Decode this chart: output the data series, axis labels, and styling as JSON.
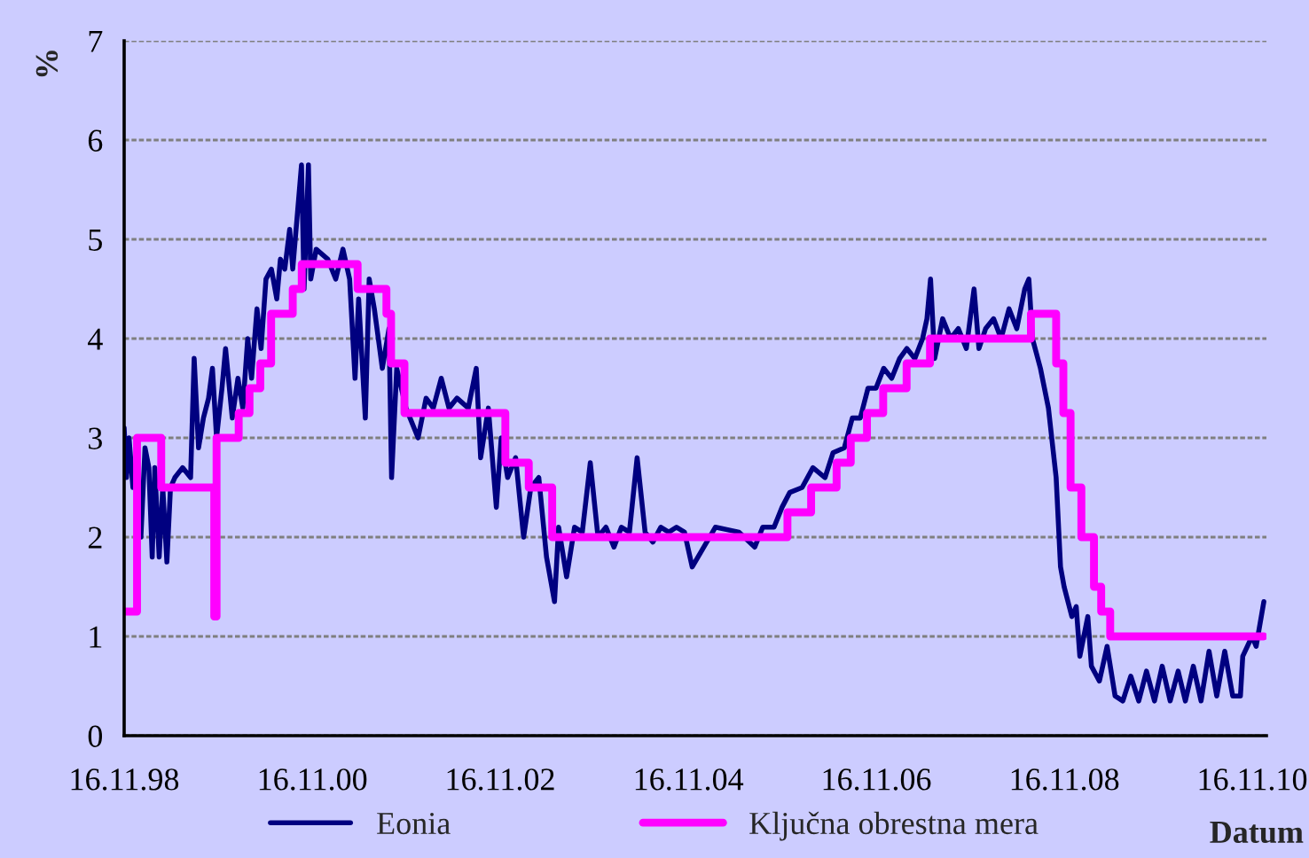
{
  "chart_data": {
    "type": "line",
    "ylabel": "%",
    "xlabel": "Datum",
    "xlim": [
      "1998-11-16",
      "2011-01-10"
    ],
    "xticks": [
      {
        "value": "1998-11-16",
        "label": "16.11.98"
      },
      {
        "value": "2000-11-16",
        "label": "16.11.00"
      },
      {
        "value": "2002-11-16",
        "label": "16.11.02"
      },
      {
        "value": "2004-11-16",
        "label": "16.11.04"
      },
      {
        "value": "2006-11-16",
        "label": "16.11.06"
      },
      {
        "value": "2008-11-16",
        "label": "16.11.08"
      },
      {
        "value": "2010-11-16",
        "label": "16.11.10"
      }
    ],
    "ylim": [
      0,
      7
    ],
    "yticks": [
      0,
      1,
      2,
      3,
      4,
      5,
      6,
      7
    ],
    "grid": "y",
    "legend": "bottom",
    "line_style": "solid",
    "series": [
      {
        "name": "Eonia",
        "color": "#000080",
        "x": [
          "1998-11-16",
          "1998-11-25",
          "1998-12-05",
          "1998-12-20",
          "1999-01-05",
          "1999-01-20",
          "1999-02-05",
          "1999-02-20",
          "1999-03-05",
          "1999-03-15",
          "1999-04-01",
          "1999-04-15",
          "1999-05-01",
          "1999-05-15",
          "1999-06-01",
          "1999-07-01",
          "1999-08-01",
          "1999-08-15",
          "1999-09-01",
          "1999-09-20",
          "1999-10-10",
          "1999-10-25",
          "1999-11-10",
          "1999-12-01",
          "1999-12-15",
          "2000-01-10",
          "2000-02-01",
          "2000-02-20",
          "2000-03-10",
          "2000-03-25",
          "2000-04-15",
          "2000-05-01",
          "2000-05-20",
          "2000-06-10",
          "2000-07-01",
          "2000-07-15",
          "2000-08-01",
          "2000-08-20",
          "2000-09-01",
          "2000-10-05",
          "2000-10-15",
          "2000-11-01",
          "2000-11-10",
          "2000-12-01",
          "2001-01-15",
          "2001-02-15",
          "2001-03-15",
          "2001-04-10",
          "2001-05-01",
          "2001-05-15",
          "2001-06-10",
          "2001-06-25",
          "2001-07-15",
          "2001-08-15",
          "2001-09-10",
          "2001-09-20",
          "2001-10-10",
          "2001-11-15",
          "2002-01-01",
          "2002-02-01",
          "2002-03-01",
          "2002-04-01",
          "2002-05-01",
          "2002-06-01",
          "2002-07-15",
          "2002-08-15",
          "2002-09-01",
          "2002-10-01",
          "2002-11-01",
          "2002-11-20",
          "2002-12-15",
          "2003-01-15",
          "2003-02-15",
          "2003-03-15",
          "2003-04-15",
          "2003-05-15",
          "2003-06-15",
          "2003-07-01",
          "2003-08-01",
          "2003-09-01",
          "2003-10-01",
          "2003-11-01",
          "2003-12-01",
          "2004-01-01",
          "2004-02-01",
          "2004-03-01",
          "2004-04-01",
          "2004-05-01",
          "2004-06-01",
          "2004-07-01",
          "2004-08-01",
          "2004-09-01",
          "2004-10-01",
          "2004-11-01",
          "2004-12-01",
          "2005-03-01",
          "2005-06-01",
          "2005-08-01",
          "2005-09-01",
          "2005-10-15",
          "2005-11-15",
          "2005-12-15",
          "2006-02-01",
          "2006-03-15",
          "2006-05-01",
          "2006-06-01",
          "2006-07-15",
          "2006-08-15",
          "2006-09-15",
          "2006-10-15",
          "2006-11-15",
          "2006-12-15",
          "2007-01-15",
          "2007-02-15",
          "2007-03-15",
          "2007-04-15",
          "2007-05-15",
          "2007-06-01",
          "2007-06-15",
          "2007-07-01",
          "2007-08-01",
          "2007-09-01",
          "2007-10-01",
          "2007-11-01",
          "2007-12-01",
          "2007-12-20",
          "2008-01-15",
          "2008-02-15",
          "2008-03-15",
          "2008-04-15",
          "2008-05-15",
          "2008-06-15",
          "2008-07-01",
          "2008-07-15",
          "2008-08-15",
          "2008-09-15",
          "2008-10-15",
          "2008-11-01",
          "2008-11-15",
          "2008-12-15",
          "2009-01-01",
          "2009-01-15",
          "2009-02-15",
          "2009-03-01",
          "2009-04-01",
          "2009-05-01",
          "2009-06-01",
          "2009-07-01",
          "2009-08-01",
          "2009-09-01",
          "2009-10-01",
          "2009-11-01",
          "2009-12-01",
          "2010-01-01",
          "2010-02-01",
          "2010-03-01",
          "2010-04-01",
          "2010-05-01",
          "2010-06-01",
          "2010-07-01",
          "2010-08-01",
          "2010-09-01",
          "2010-10-01",
          "2010-10-10",
          "2010-11-15",
          "2010-12-01",
          "2010-12-31"
        ],
        "values": [
          3.1,
          2.6,
          3.0,
          2.5,
          2.8,
          2.0,
          2.9,
          2.7,
          1.8,
          2.7,
          1.8,
          2.5,
          1.75,
          2.5,
          2.6,
          2.7,
          2.6,
          3.8,
          2.9,
          3.2,
          3.4,
          3.7,
          3.0,
          3.5,
          3.9,
          3.2,
          3.6,
          3.3,
          4.0,
          3.6,
          4.3,
          3.9,
          4.6,
          4.7,
          4.4,
          4.8,
          4.7,
          5.1,
          4.7,
          5.75,
          4.5,
          5.75,
          4.6,
          4.9,
          4.8,
          4.6,
          4.9,
          4.6,
          3.6,
          4.4,
          3.2,
          4.6,
          4.3,
          3.7,
          4.1,
          2.6,
          3.7,
          3.3,
          3.0,
          3.4,
          3.3,
          3.6,
          3.3,
          3.4,
          3.3,
          3.7,
          2.8,
          3.3,
          2.3,
          3.0,
          2.6,
          2.8,
          2.0,
          2.5,
          2.6,
          1.8,
          1.35,
          2.1,
          1.6,
          2.1,
          2.05,
          2.75,
          2.0,
          2.1,
          1.9,
          2.1,
          2.05,
          2.8,
          2.05,
          1.95,
          2.1,
          2.05,
          2.1,
          2.05,
          1.7,
          2.1,
          2.05,
          1.9,
          2.1,
          2.1,
          2.3,
          2.45,
          2.5,
          2.7,
          2.6,
          2.85,
          2.9,
          3.2,
          3.2,
          3.5,
          3.5,
          3.7,
          3.6,
          3.8,
          3.9,
          3.8,
          4.0,
          4.2,
          4.6,
          3.8,
          4.2,
          4.0,
          4.1,
          3.9,
          4.5,
          3.9,
          4.1,
          4.2,
          4.0,
          4.3,
          4.1,
          4.5,
          4.6,
          4.0,
          3.7,
          3.3,
          2.6,
          1.7,
          1.5,
          1.2,
          1.3,
          0.8,
          1.2,
          0.7,
          0.55,
          0.9,
          0.4,
          0.35,
          0.6,
          0.35,
          0.65,
          0.35,
          0.7,
          0.35,
          0.65,
          0.35,
          0.7,
          0.35,
          0.85,
          0.4,
          0.85,
          0.4,
          0.4,
          0.8,
          1.0,
          0.9,
          1.35
        ]
      },
      {
        "name": "Ključna obrestna mera",
        "type": "step",
        "color": "#ff00ff",
        "x": [
          "1998-11-16",
          "1999-01-05",
          "1999-04-09",
          "1999-11-01",
          "1999-11-10",
          "2000-02-04",
          "2000-03-17",
          "2000-04-28",
          "2000-06-09",
          "2000-09-01",
          "2000-10-06",
          "2001-05-11",
          "2001-08-31",
          "2001-09-18",
          "2001-11-09",
          "2002-12-06",
          "2003-03-07",
          "2003-06-06",
          "2005-12-06",
          "2006-03-08",
          "2006-06-15",
          "2006-08-09",
          "2006-10-11",
          "2006-12-13",
          "2007-03-14",
          "2007-06-13",
          "2008-07-09",
          "2008-10-15",
          "2008-11-12",
          "2008-12-10",
          "2009-01-21",
          "2009-03-11",
          "2009-04-08",
          "2009-05-13",
          "2010-12-31"
        ],
        "values": [
          1.25,
          3.0,
          2.5,
          1.2,
          3.0,
          3.25,
          3.5,
          3.75,
          4.25,
          4.5,
          4.75,
          4.5,
          4.25,
          3.75,
          3.25,
          2.75,
          2.5,
          2.0,
          2.25,
          2.5,
          2.75,
          3.0,
          3.25,
          3.5,
          3.75,
          4.0,
          4.25,
          3.75,
          3.25,
          2.5,
          2.0,
          1.5,
          1.25,
          1.0,
          1.0
        ]
      }
    ]
  }
}
